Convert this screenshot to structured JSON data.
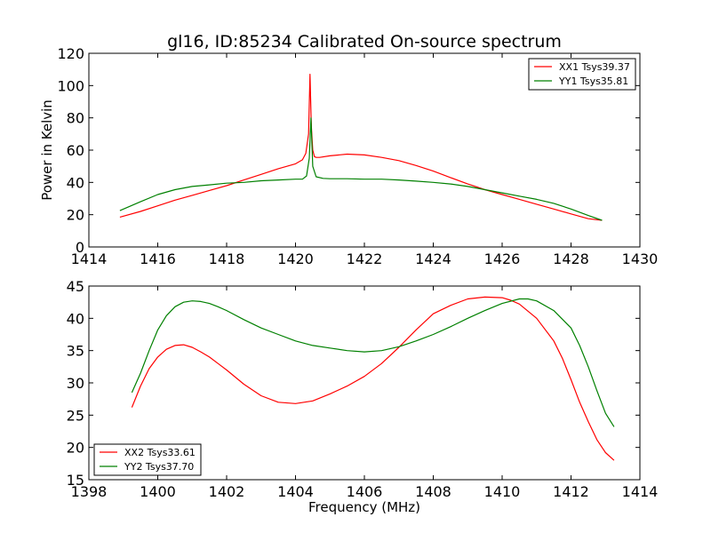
{
  "chart_data": [
    {
      "type": "line",
      "title": "gl16, ID:85234 Calibrated On-source spectrum",
      "xlabel": "",
      "ylabel": "Power in Kelvin",
      "xlim": [
        1414,
        1430
      ],
      "ylim": [
        0,
        120
      ],
      "xticks": [
        "1414",
        "1416",
        "1418",
        "1420",
        "1422",
        "1424",
        "1426",
        "1428",
        "1430"
      ],
      "yticks": [
        "0",
        "20",
        "40",
        "60",
        "80",
        "100",
        "120"
      ],
      "grid": false,
      "legend_position": "top-right",
      "series": [
        {
          "name": "XX1 Tsys39.37",
          "color": "#ff0000",
          "x": [
            1414.9,
            1415.5,
            1416,
            1416.5,
            1417,
            1417.5,
            1418,
            1418.5,
            1419,
            1419.5,
            1420,
            1420.2,
            1420.3,
            1420.38,
            1420.42,
            1420.46,
            1420.5,
            1420.55,
            1420.6,
            1420.7,
            1421,
            1421.5,
            1422,
            1422.5,
            1423,
            1423.5,
            1424,
            1424.5,
            1425,
            1425.5,
            1426,
            1426.5,
            1427,
            1427.5,
            1428,
            1428.5,
            1428.9
          ],
          "y": [
            18.5,
            22,
            25.5,
            29,
            32,
            35,
            38,
            41.5,
            45,
            48.5,
            51.5,
            54,
            58,
            70,
            107,
            75,
            60,
            56,
            55.5,
            55.5,
            56.5,
            57.5,
            57,
            55.5,
            53.5,
            50.5,
            47,
            43,
            39,
            35.5,
            32.5,
            29.5,
            26.5,
            23.5,
            20.5,
            17.5,
            16.5
          ]
        },
        {
          "name": "YY1 Tsys35.81",
          "color": "#008000",
          "x": [
            1414.9,
            1415.5,
            1416,
            1416.5,
            1417,
            1417.5,
            1418,
            1418.5,
            1419,
            1419.5,
            1420,
            1420.2,
            1420.32,
            1420.4,
            1420.45,
            1420.5,
            1420.6,
            1420.8,
            1421,
            1421.5,
            1422,
            1422.5,
            1423,
            1423.5,
            1424,
            1424.5,
            1425,
            1425.5,
            1426,
            1426.5,
            1427,
            1427.5,
            1428,
            1428.5,
            1428.9
          ],
          "y": [
            22.5,
            28,
            32.5,
            35.5,
            37.5,
            38.5,
            39.5,
            40,
            41,
            41.5,
            42,
            42,
            44,
            55,
            80,
            50,
            43.5,
            42.5,
            42.3,
            42.3,
            42,
            42,
            41.5,
            40.8,
            40,
            39,
            37.5,
            35.5,
            33.5,
            31.5,
            29.5,
            27,
            23.5,
            19.5,
            16.5
          ]
        }
      ]
    },
    {
      "type": "line",
      "title": "",
      "xlabel": "Frequency (MHz)",
      "ylabel": "",
      "xlim": [
        1398,
        1414
      ],
      "ylim": [
        15,
        45
      ],
      "xticks": [
        "1398",
        "1400",
        "1402",
        "1404",
        "1406",
        "1408",
        "1410",
        "1412",
        "1414"
      ],
      "yticks": [
        "15",
        "20",
        "25",
        "30",
        "35",
        "40",
        "45"
      ],
      "grid": false,
      "legend_position": "lower-left",
      "series": [
        {
          "name": "XX2 Tsys33.61",
          "color": "#ff0000",
          "x": [
            1399.25,
            1399.5,
            1399.75,
            1400,
            1400.25,
            1400.5,
            1400.75,
            1401,
            1401.25,
            1401.5,
            1401.75,
            1402,
            1402.5,
            1403,
            1403.5,
            1404,
            1404.5,
            1405,
            1405.5,
            1406,
            1406.5,
            1407,
            1407.5,
            1408,
            1408.5,
            1409,
            1409.5,
            1410,
            1410.25,
            1410.5,
            1411,
            1411.5,
            1411.75,
            1412,
            1412.25,
            1412.5,
            1412.75,
            1413,
            1413.25
          ],
          "y": [
            26.2,
            29.5,
            32.2,
            34,
            35.2,
            35.8,
            35.9,
            35.5,
            34.8,
            34,
            33,
            32,
            29.8,
            28,
            27,
            26.8,
            27.2,
            28.3,
            29.5,
            31,
            33,
            35.5,
            38.2,
            40.7,
            42,
            43,
            43.3,
            43.2,
            42.8,
            42.2,
            40,
            36.5,
            33.8,
            30.5,
            27,
            24,
            21.2,
            19.2,
            18
          ]
        },
        {
          "name": "YY2 Tsys37.70",
          "color": "#008000",
          "x": [
            1399.25,
            1399.5,
            1399.75,
            1400,
            1400.25,
            1400.5,
            1400.75,
            1401,
            1401.25,
            1401.5,
            1401.75,
            1402,
            1402.5,
            1403,
            1403.5,
            1404,
            1404.5,
            1405,
            1405.5,
            1406,
            1406.5,
            1407,
            1407.5,
            1408,
            1408.5,
            1409,
            1409.5,
            1410,
            1410.5,
            1410.75,
            1411,
            1411.5,
            1412,
            1412.25,
            1412.5,
            1412.75,
            1413,
            1413.25
          ],
          "y": [
            28.5,
            31.5,
            35,
            38.2,
            40.4,
            41.8,
            42.5,
            42.7,
            42.6,
            42.3,
            41.8,
            41.2,
            39.8,
            38.5,
            37.5,
            36.5,
            35.8,
            35.4,
            35,
            34.8,
            35,
            35.6,
            36.5,
            37.5,
            38.7,
            40,
            41.2,
            42.3,
            43,
            43,
            42.7,
            41.2,
            38.5,
            35.8,
            32.5,
            28.8,
            25.3,
            23.2
          ]
        }
      ]
    }
  ]
}
